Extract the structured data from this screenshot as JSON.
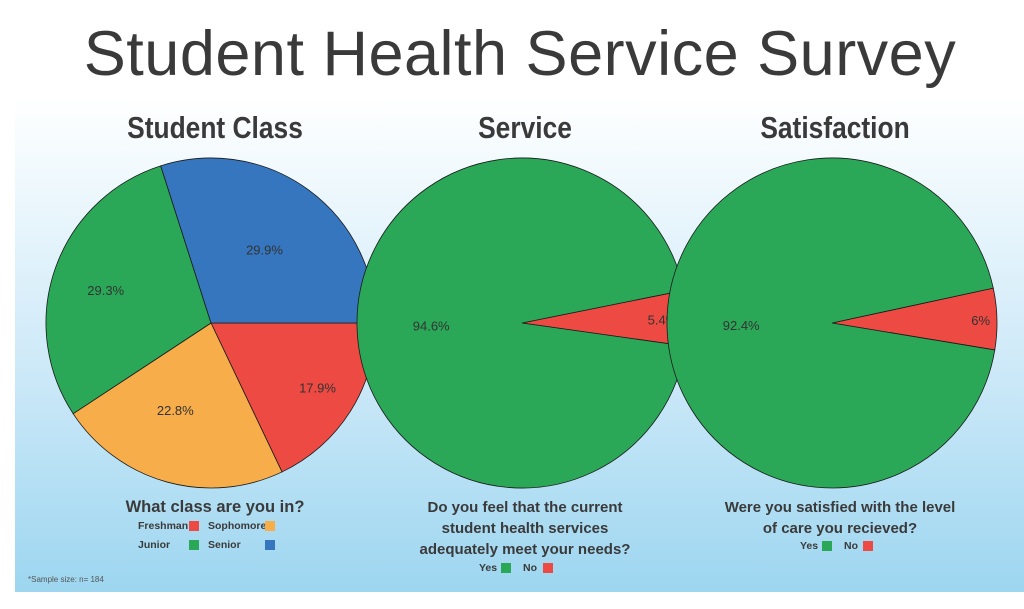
{
  "title": "Student Health Service Survey",
  "footnote": "*Sample size: n= 184",
  "colors": {
    "red": "#ec4a43",
    "orange": "#f7ad4a",
    "green": "#2aa857",
    "blue": "#3576bf"
  },
  "charts": [
    {
      "title": "Student Class",
      "question": "What class are you in?",
      "legend": [
        {
          "label": "Freshman",
          "color": "#ec4a43"
        },
        {
          "label": "Sophomore",
          "color": "#f7ad4a"
        },
        {
          "label": "Junior",
          "color": "#2aa857"
        },
        {
          "label": "Senior",
          "color": "#3576bf"
        }
      ]
    },
    {
      "title": "Service",
      "question_lines": [
        "Do you feel that the current",
        "student health services",
        "adequately meet your needs?"
      ],
      "legend": [
        {
          "label": "Yes",
          "color": "#2aa857"
        },
        {
          "label": "No",
          "color": "#ec4a43"
        }
      ]
    },
    {
      "title": "Satisfaction",
      "question_lines": [
        "Were you satisfied with the level",
        "of care you recieved?"
      ],
      "legend": [
        {
          "label": "Yes",
          "color": "#2aa857"
        },
        {
          "label": "No",
          "color": "#ec4a43"
        }
      ]
    }
  ],
  "chart_data": [
    {
      "type": "pie",
      "title": "Student Class",
      "categories": [
        "Freshman",
        "Sophomore",
        "Junior",
        "Senior"
      ],
      "values": [
        17.9,
        22.8,
        29.3,
        29.9
      ],
      "labels": [
        "17.9%",
        "22.8%",
        "29.3%",
        "29.9%"
      ],
      "colors": [
        "#ec4a43",
        "#f7ad4a",
        "#2aa857",
        "#3576bf"
      ]
    },
    {
      "type": "pie",
      "title": "Service",
      "categories": [
        "No",
        "Yes"
      ],
      "values": [
        5.4,
        94.6
      ],
      "labels": [
        "5.4%",
        "94.6%"
      ],
      "colors": [
        "#ec4a43",
        "#2aa857"
      ]
    },
    {
      "type": "pie",
      "title": "Satisfaction",
      "categories": [
        "No",
        "Yes"
      ],
      "values": [
        6,
        92.4
      ],
      "labels": [
        "6%",
        "92.4%"
      ],
      "colors": [
        "#ec4a43",
        "#2aa857"
      ]
    }
  ]
}
